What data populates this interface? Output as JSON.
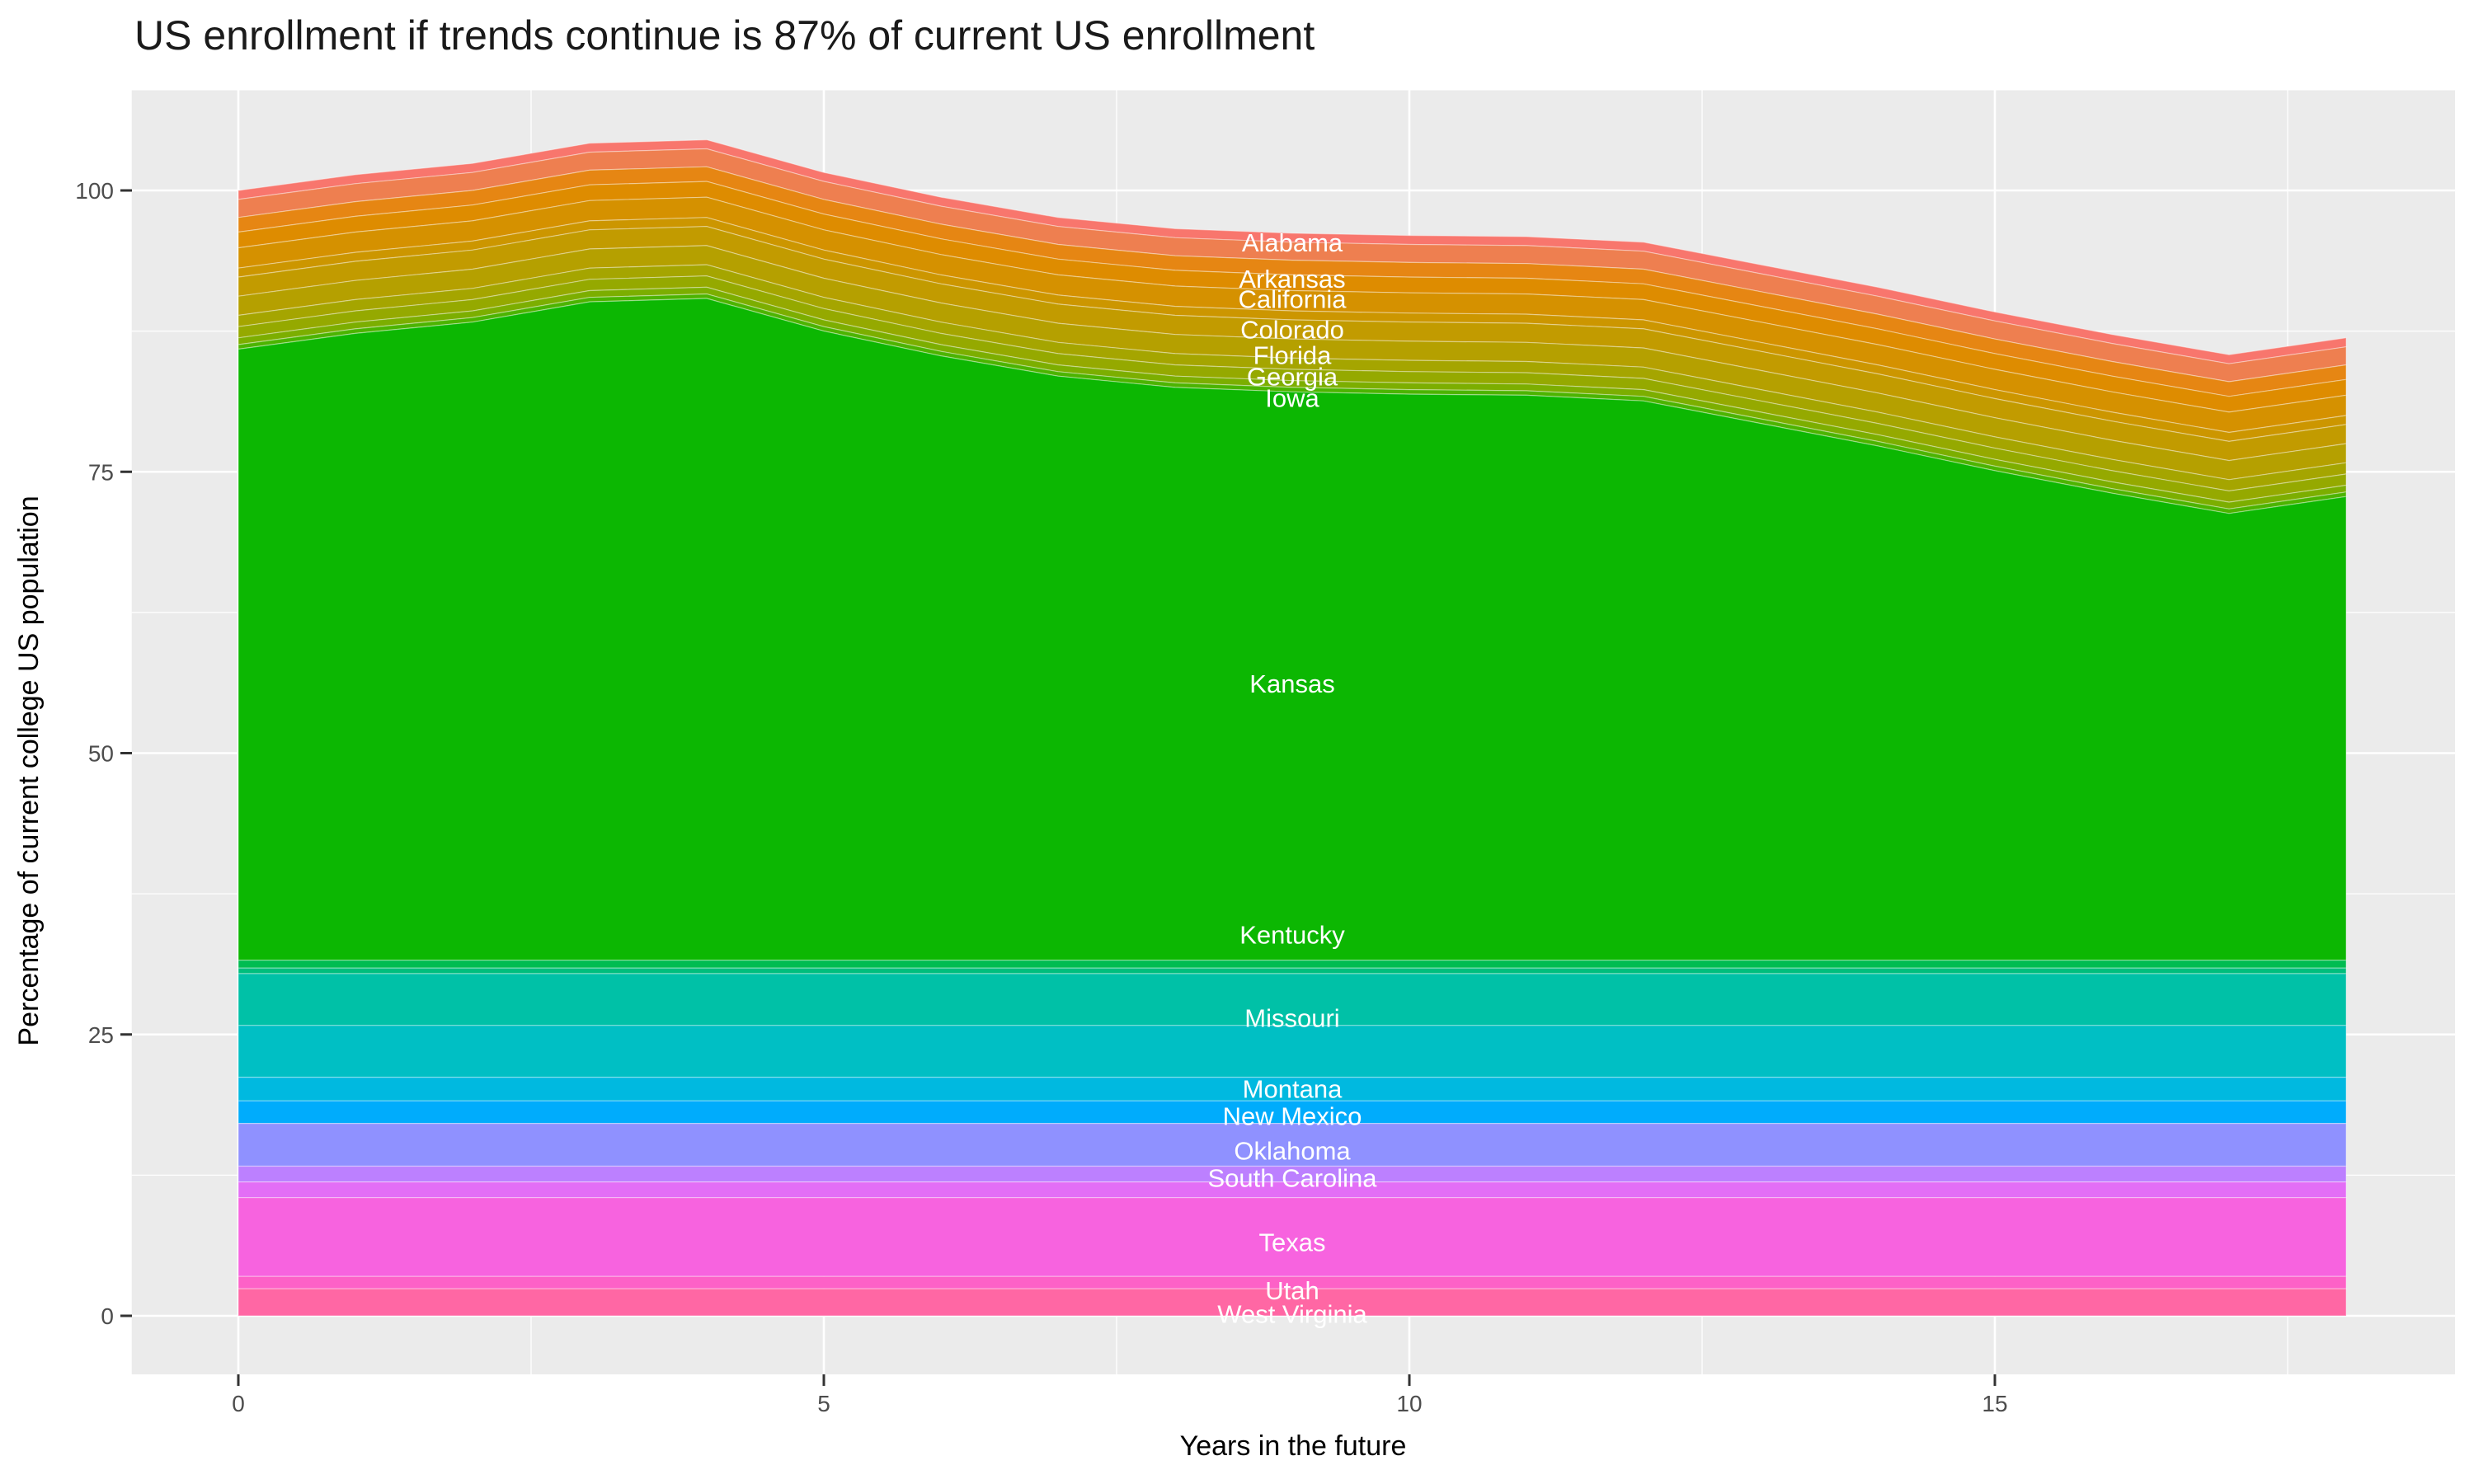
{
  "title": "US enrollment if trends continue is 87% of current US enrollment",
  "chart_data": {
    "type": "area",
    "stacked": true,
    "title": "US enrollment if trends continue is 87% of current US enrollment",
    "xlabel": "Years in the future",
    "ylabel": "Percentage of current college US population",
    "x": [
      0,
      1,
      2,
      3,
      4,
      5,
      6,
      7,
      8,
      9,
      10,
      11,
      12,
      13,
      14,
      15,
      16,
      17,
      18
    ],
    "total_top_silhouette": [
      100,
      101.4,
      102.4,
      104.2,
      104.5,
      101.6,
      99.4,
      97.6,
      96.6,
      96.2,
      96.0,
      95.9,
      95.4,
      93.4,
      91.4,
      89.2,
      87.2,
      85.4,
      86.9
    ],
    "xticks": [
      0,
      5,
      10,
      15
    ],
    "yticks": [
      0,
      25,
      50,
      75,
      100
    ],
    "xlim": [
      -0.91,
      18.93
    ],
    "ylim": [
      -5.2,
      108.9
    ],
    "grid": "major-and-minor",
    "panel_bg": "#EBEBEB",
    "grid_color": "#FFFFFF",
    "tick_label_color": "#4D4D4D",
    "series": [
      {
        "label": "Alabama",
        "color": "#F8766D",
        "thickness": 0.8
      },
      {
        "label": "",
        "color": "#EE7F50",
        "thickness": 1.6
      },
      {
        "label": "Arkansas",
        "color": "#E68613",
        "thickness": 1.3
      },
      {
        "label": "California",
        "color": "#DE8C00",
        "thickness": 1.4
      },
      {
        "label": "Colorado",
        "color": "#D59100",
        "thickness": 1.8
      },
      {
        "label": "",
        "color": "#CC9600",
        "thickness": 0.8
      },
      {
        "label": "Florida",
        "color": "#C29B00",
        "thickness": 1.7
      },
      {
        "label": "Georgia",
        "color": "#B5A000",
        "thickness": 1.7
      },
      {
        "label": "",
        "color": "#A5A500",
        "thickness": 1.0
      },
      {
        "label": "Iowa",
        "color": "#95A900",
        "thickness": 1.0
      },
      {
        "label": "",
        "color": "#7CAE00",
        "thickness": 0.6
      },
      {
        "label": "",
        "color": "#4CB400",
        "thickness": 0.4
      },
      {
        "label": "Kansas",
        "color": "#0CB702",
        "thickness": null
      },
      {
        "label": "",
        "color": "#00BC51",
        "thickness": 0.7
      },
      {
        "label": "",
        "color": "#00BE7C",
        "thickness": 0.5
      },
      {
        "label": "Kentucky",
        "color": "#00C1A7",
        "thickness": 4.6
      },
      {
        "label": "Missouri",
        "color": "#00BFC4",
        "thickness": 4.6
      },
      {
        "label": "Montana",
        "color": "#00B9E0",
        "thickness": 2.1
      },
      {
        "label": "",
        "color": "#00ACFC",
        "thickness": 2.0
      },
      {
        "label": "New Mexico",
        "color": "#8F91FF",
        "thickness": 3.8
      },
      {
        "label": "Oklahoma",
        "color": "#BC80FF",
        "thickness": 1.4
      },
      {
        "label": "South Carolina",
        "color": "#E36EF6",
        "thickness": 1.4
      },
      {
        "label": "Texas",
        "color": "#F763DF",
        "thickness": 7.0
      },
      {
        "label": "Utah",
        "color": "#FD61C7",
        "thickness": 1.1
      },
      {
        "label": "West Virginia",
        "color": "#FF67A4",
        "thickness": 2.4
      }
    ],
    "band_labels": [
      {
        "text": "Alabama",
        "x": 9.0,
        "value": 95.3
      },
      {
        "text": "Arkansas",
        "x": 9.0,
        "value": 92.1
      },
      {
        "text": "California",
        "x": 9.0,
        "value": 90.3
      },
      {
        "text": "Colorado",
        "x": 9.0,
        "value": 87.6
      },
      {
        "text": "Florida",
        "x": 9.0,
        "value": 85.3
      },
      {
        "text": "Georgia",
        "x": 9.0,
        "value": 83.4
      },
      {
        "text": "Iowa",
        "x": 9.0,
        "value": 81.5
      },
      {
        "text": "Kansas",
        "x": 9.0,
        "value": 56.1
      },
      {
        "text": "Kentucky",
        "x": 9.0,
        "value": 33.8
      },
      {
        "text": "Missouri",
        "x": 9.0,
        "value": 26.4
      },
      {
        "text": "Montana",
        "x": 9.0,
        "value": 20.1
      },
      {
        "text": "New Mexico",
        "x": 9.0,
        "value": 17.7
      },
      {
        "text": "Oklahoma",
        "x": 9.0,
        "value": 14.6
      },
      {
        "text": "South Carolina",
        "x": 9.0,
        "value": 12.2
      },
      {
        "text": "Texas",
        "x": 9.0,
        "value": 6.5
      },
      {
        "text": "Utah",
        "x": 9.0,
        "value": 2.2
      },
      {
        "text": "West Virginia",
        "x": 9.0,
        "value": 0.1
      }
    ]
  }
}
